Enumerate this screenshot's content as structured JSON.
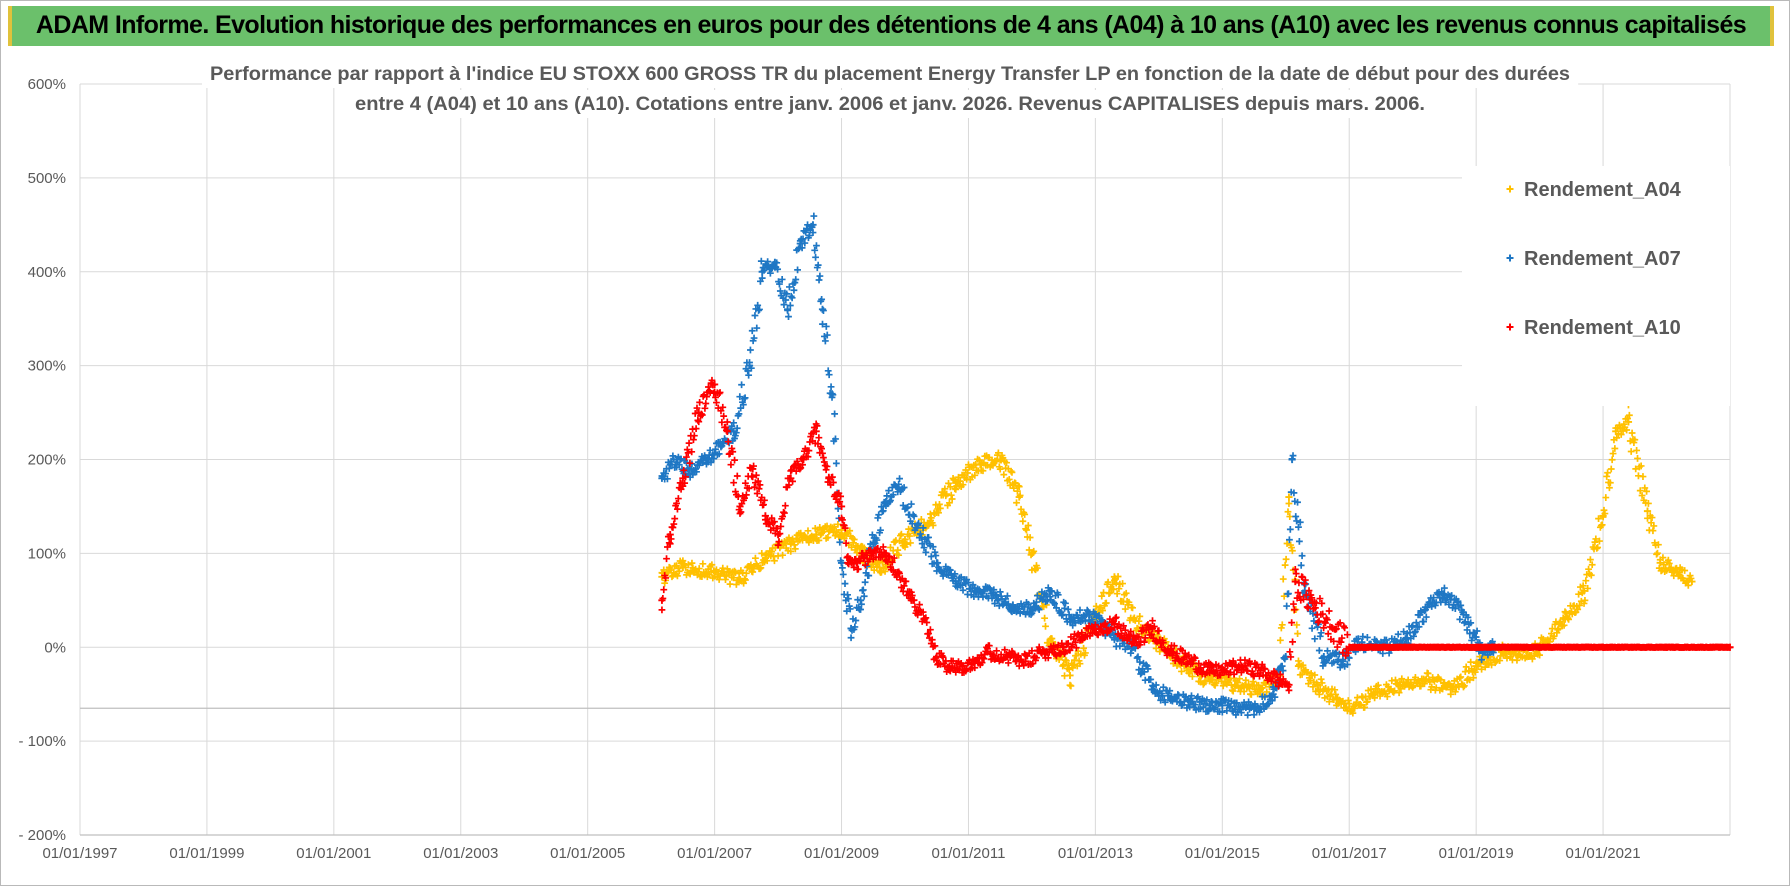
{
  "banner": {
    "title": "ADAM Informe. Evolution historique des performances en euros pour des détentions de 4 ans (A04) à 10 ans (A10) avec les revenus connus capitalisés",
    "background": "#6bc06b",
    "accent": "#e0c23c"
  },
  "chart_data": {
    "type": "scatter",
    "title": [
      "Performance par rapport à l'indice EU STOXX 600 GROSS TR  du placement Energy Transfer LP en fonction de la date de début pour des durées",
      "entre 4 (A04) et 10 ans (A10). Cotations entre janv. 2006 et janv. 2026. Revenus CAPITALISES depuis mars. 2006."
    ],
    "x_axis": {
      "type": "date",
      "range": [
        1997.0,
        2023.0
      ],
      "ticks": [
        1997,
        1999,
        2001,
        2003,
        2005,
        2007,
        2009,
        2011,
        2013,
        2015,
        2017,
        2019,
        2021
      ],
      "tick_labels": [
        "01/01/1997",
        "01/01/1999",
        "01/01/2001",
        "01/01/2003",
        "01/01/2005",
        "01/01/2007",
        "01/01/2009",
        "01/01/2011",
        "01/01/2013",
        "01/01/2015",
        "01/01/2017",
        "01/01/2019",
        "01/01/2021"
      ]
    },
    "y_axis": {
      "unit": "percent",
      "range": [
        -200,
        600
      ],
      "ticks": [
        600,
        500,
        400,
        300,
        200,
        100,
        0,
        -100,
        -200
      ],
      "tick_labels": [
        "600%",
        "500%",
        "400%",
        "300%",
        "200%",
        "100%",
        "0%",
        "- 100%",
        "- 200%"
      ],
      "reference_line": -65
    },
    "legend": {
      "position": "top-right",
      "entries": [
        "Rendement_A04",
        "Rendement_A07",
        "Rendement_A10"
      ]
    },
    "marker": "+",
    "series": [
      {
        "name": "Rendement_A04",
        "color": "#ffc000",
        "x": [
          2006.17,
          2006.5,
          2007.0,
          2007.4,
          2007.8,
          2008.2,
          2008.6,
          2009.0,
          2009.3,
          2009.6,
          2010.0,
          2010.4,
          2010.8,
          2011.2,
          2011.5,
          2011.8,
          2012.0,
          2012.3,
          2012.6,
          2013.0,
          2013.3,
          2013.6,
          2014.0,
          2014.4,
          2014.8,
          2015.2,
          2015.6,
          2015.9,
          2016.05,
          2016.2,
          2016.5,
          2016.8,
          2017.0,
          2017.4,
          2017.8,
          2018.2,
          2018.6,
          2019.0,
          2019.4,
          2019.8,
          2020.1,
          2020.4,
          2020.7,
          2021.0,
          2021.2,
          2021.4,
          2021.7,
          2021.9,
          2022.2,
          2022.4
        ],
        "y": [
          75,
          85,
          80,
          72,
          95,
          110,
          120,
          125,
          100,
          85,
          115,
          135,
          175,
          195,
          200,
          160,
          100,
          5,
          -30,
          30,
          75,
          30,
          5,
          -20,
          -35,
          -40,
          -45,
          -30,
          160,
          -20,
          -40,
          -55,
          -65,
          -50,
          -40,
          -35,
          -45,
          -20,
          -5,
          -10,
          5,
          30,
          60,
          140,
          230,
          240,
          145,
          90,
          80,
          70
        ]
      },
      {
        "name": "Rendement_A07",
        "color": "#1f77c4",
        "x": [
          2006.17,
          2006.4,
          2006.6,
          2006.9,
          2007.1,
          2007.3,
          2007.55,
          2007.75,
          2007.95,
          2008.15,
          2008.35,
          2008.55,
          2008.7,
          2008.85,
          2009.0,
          2009.15,
          2009.3,
          2009.5,
          2009.7,
          2009.9,
          2010.2,
          2010.5,
          2010.8,
          2011.1,
          2011.4,
          2011.7,
          2012.0,
          2012.3,
          2012.6,
          2012.9,
          2013.1,
          2013.3,
          2013.6,
          2013.9,
          2014.2,
          2014.5,
          2014.8,
          2015.0,
          2015.2,
          2015.5,
          2015.8,
          2016.0,
          2016.1,
          2016.3,
          2016.6,
          2016.9,
          2017.2,
          2017.6,
          2017.9,
          2018.2,
          2018.5,
          2018.8,
          2019.1,
          2019.3
        ],
        "y": [
          180,
          200,
          185,
          200,
          215,
          230,
          300,
          400,
          410,
          360,
          430,
          450,
          360,
          270,
          90,
          20,
          50,
          110,
          155,
          170,
          130,
          90,
          70,
          60,
          55,
          45,
          40,
          60,
          30,
          35,
          25,
          10,
          0,
          -45,
          -55,
          -58,
          -62,
          -62,
          -66,
          -65,
          -50,
          -10,
          200,
          60,
          -10,
          -15,
          5,
          0,
          10,
          40,
          55,
          35,
          -5,
          0
        ]
      },
      {
        "name": "Rendement_A10",
        "color": "#ff0000",
        "x": [
          2006.17,
          2006.3,
          2006.5,
          2006.75,
          2007.0,
          2007.2,
          2007.4,
          2007.6,
          2007.8,
          2008.0,
          2008.2,
          2008.4,
          2008.6,
          2008.8,
          2009.0,
          2009.1,
          2009.25,
          2009.5,
          2009.7,
          2009.9,
          2010.1,
          2010.3,
          2010.5,
          2010.7,
          2010.9,
          2011.1,
          2011.3,
          2011.6,
          2011.9,
          2012.2,
          2012.5,
          2012.8,
          2013.0,
          2013.3,
          2013.6,
          2013.9,
          2014.2,
          2014.5,
          2014.8,
          2015.0,
          2015.3,
          2015.6,
          2015.9,
          2016.05,
          2016.15,
          2017.0,
          2018.0,
          2019.0,
          2020.0,
          2021.0,
          2022.0,
          2023.0
        ],
        "y": [
          50,
          120,
          180,
          250,
          280,
          230,
          150,
          190,
          140,
          120,
          180,
          200,
          230,
          180,
          150,
          90,
          90,
          100,
          100,
          80,
          50,
          30,
          -10,
          -20,
          -20,
          -15,
          -5,
          -10,
          -15,
          -5,
          0,
          10,
          20,
          25,
          5,
          20,
          -5,
          -15,
          -25,
          -25,
          -20,
          -25,
          -35,
          -40,
          70,
          0,
          0,
          0,
          0,
          0,
          0,
          0
        ]
      }
    ]
  }
}
